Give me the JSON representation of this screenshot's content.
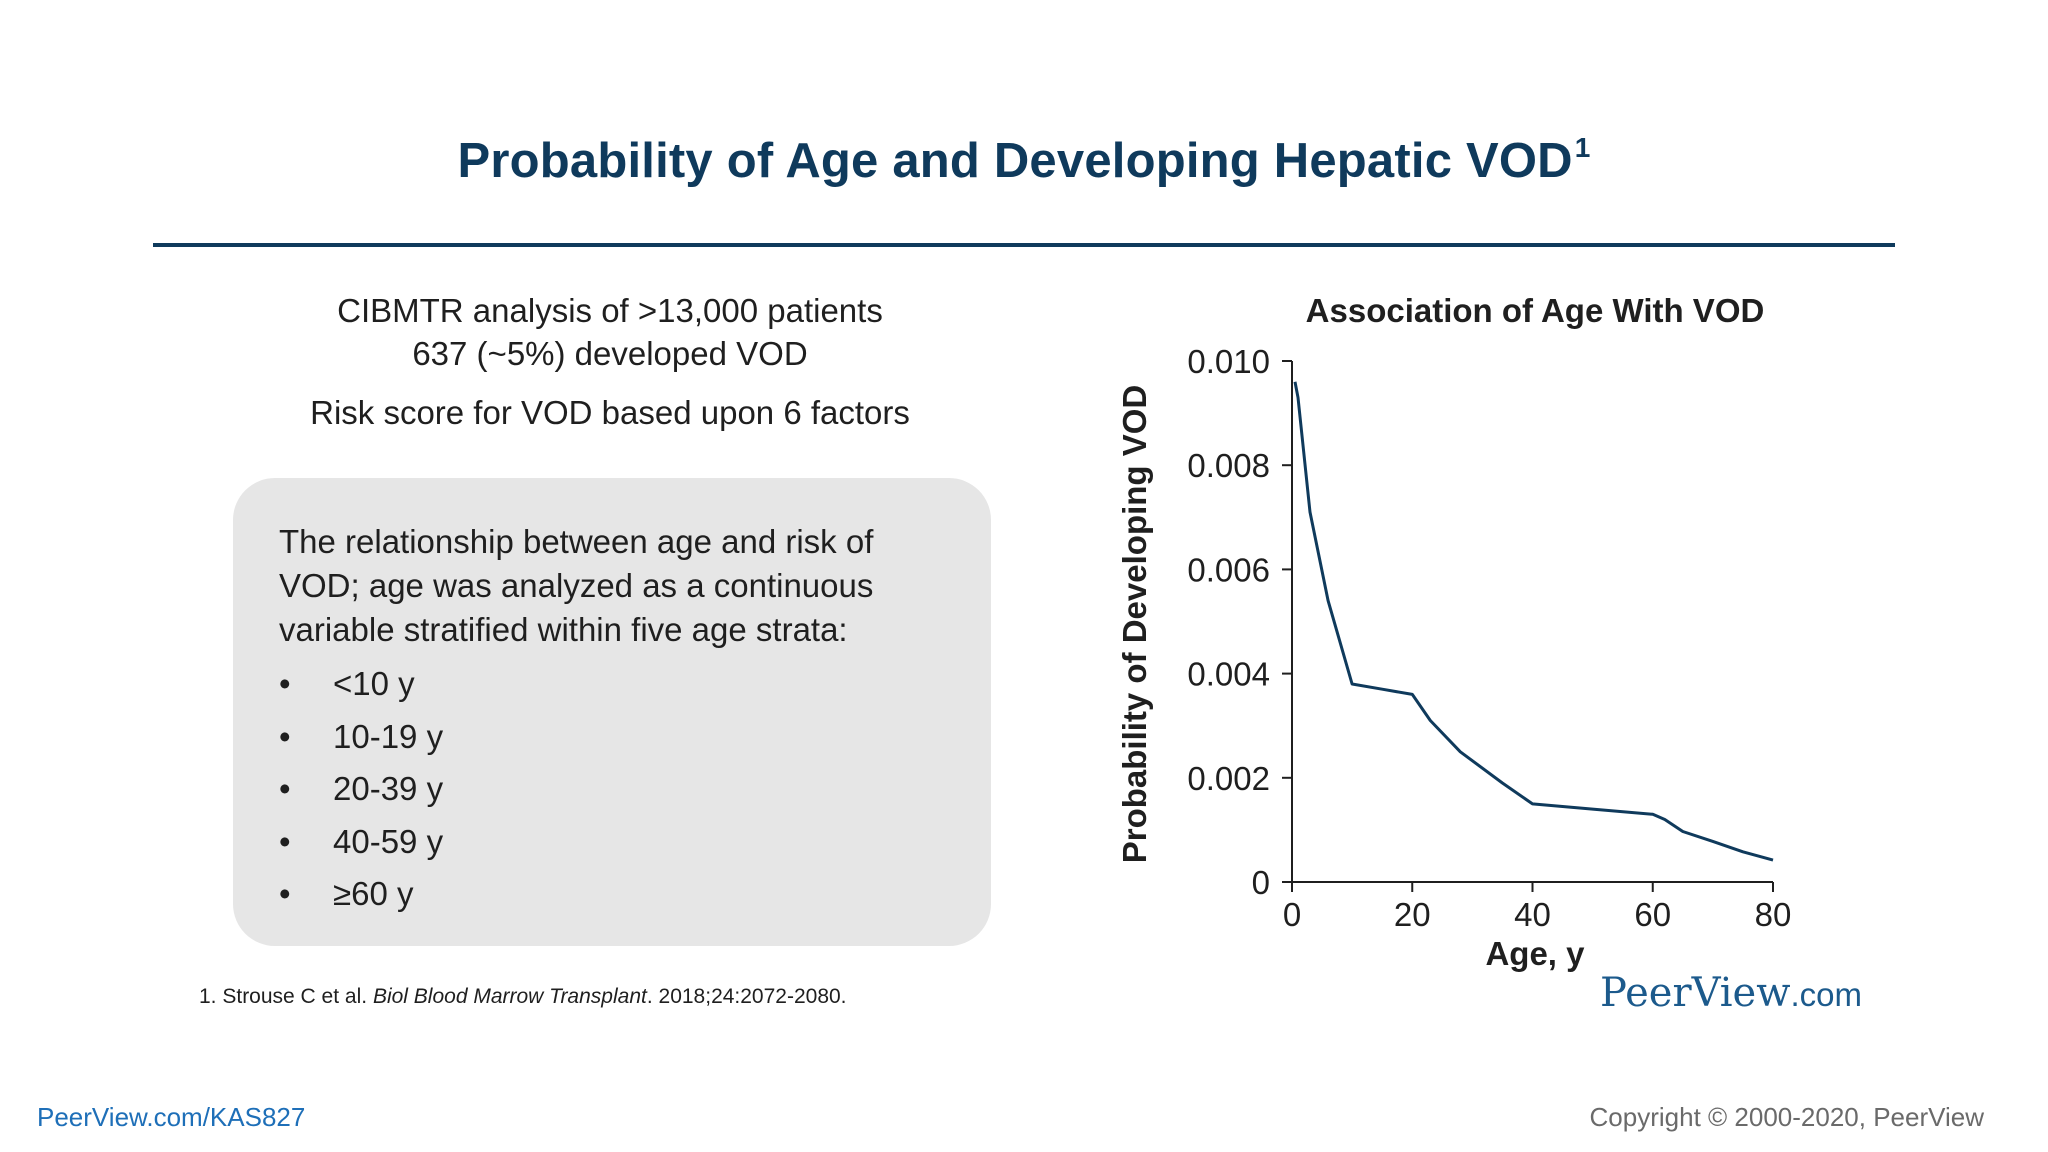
{
  "slide": {
    "title": "Probability of Age and Developing Hepatic VOD",
    "title_superscript": "1",
    "intro_lines": [
      "CIBMTR analysis of >13,000 patients",
      "637 (~5%) developed VOD",
      "Risk score for VOD based upon 6 factors"
    ],
    "panel_text": "The relationship between age and risk of VOD; age was analyzed as a continuous variable stratified within five age strata:",
    "strata": [
      "<10 y",
      "10-19 y",
      "20-39 y",
      "40-59 y",
      "≥60 y"
    ],
    "bullet_glyph": "•",
    "footnote": {
      "prefix": "1. Strouse C et al.",
      "journal": "Biol Blood Marrow Transplant",
      "suffix": ". 2018;24:2072-2080."
    },
    "brand": {
      "name": "PeerView",
      "suffix": ".com"
    },
    "bottom_link": "PeerView.com/KAS827",
    "copyright": "Copyright © 2000-2020, PeerView"
  },
  "colors": {
    "title": "#0f3a5c",
    "line": "#0f3a5c",
    "panel": "#e6e6e6",
    "link": "#1e6fb8"
  },
  "chart_data": {
    "type": "line",
    "title": "Association of Age With VOD",
    "xlabel": "Age, y",
    "ylabel": "Probability of Developing VOD",
    "xlim": [
      0,
      80
    ],
    "ylim": [
      0,
      0.01
    ],
    "xticks": [
      0,
      20,
      40,
      60,
      80
    ],
    "xtick_labels": [
      "0",
      "20",
      "40",
      "60",
      "80"
    ],
    "yticks": [
      0,
      0.002,
      0.004,
      0.006,
      0.008,
      0.01
    ],
    "ytick_labels": [
      "0",
      "0.002",
      "0.004",
      "0.006",
      "0.008",
      "0.010"
    ],
    "grid": false,
    "legend": "none",
    "series": [
      {
        "x": [
          0.5,
          1,
          3,
          6,
          10,
          15,
          20,
          23,
          28,
          35,
          40,
          50,
          60,
          62,
          65,
          70,
          75,
          80
        ],
        "values": [
          0.0096,
          0.0093,
          0.0071,
          0.0054,
          0.0038,
          0.0037,
          0.0036,
          0.0031,
          0.0025,
          0.0019,
          0.0015,
          0.0014,
          0.0013,
          0.0012,
          0.00097,
          0.00078,
          0.00058,
          0.00042
        ]
      }
    ]
  }
}
